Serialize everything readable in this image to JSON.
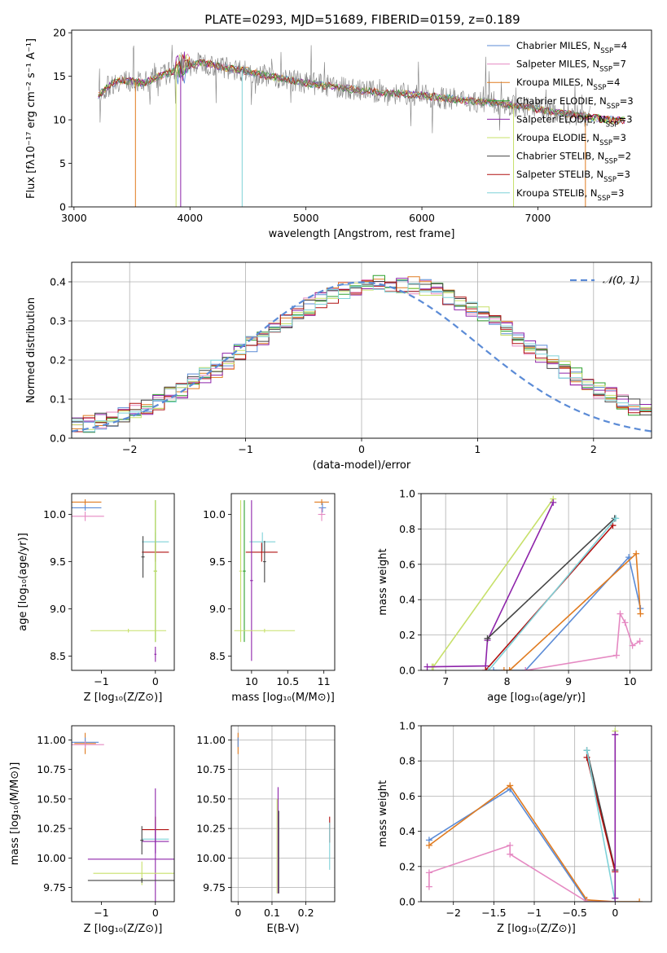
{
  "figure": {
    "title": "PLATE=0293, MJD=51689, FIBERID=0159, z=0.189"
  },
  "chart_data": [
    {
      "id": "spectrum",
      "type": "line",
      "title": "PLATE=0293, MJD=51689, FIBERID=0159, z=0.189",
      "xlabel": "wavelength [Angstrom, rest frame]",
      "ylabel": "Flux [fλ10⁻¹⁷ erg cm⁻² s⁻¹ A⁻¹]",
      "xlim": [
        2980,
        7980
      ],
      "ylim": [
        0,
        20.3
      ],
      "xticks": [
        3000,
        4000,
        5000,
        6000,
        7000
      ],
      "yticks": [
        0,
        5,
        10,
        15,
        20
      ],
      "legend_position": "right",
      "grid": false,
      "series": [
        {
          "name": "Chabrier MILES, N_SSP=4",
          "color": "#5b8bd6"
        },
        {
          "name": "Salpeter MILES, N_SSP=7",
          "color": "#e589c2"
        },
        {
          "name": "Kroupa MILES, N_SSP=4",
          "color": "#e07b20"
        },
        {
          "name": "Chabrier ELODIE, N_SSP=3",
          "color": "#2ca02c"
        },
        {
          "name": "Salpeter ELODIE, N_SSP=3",
          "color": "#8e24aa"
        },
        {
          "name": "Kroupa ELODIE, N_SSP=3",
          "color": "#c7e06a"
        },
        {
          "name": "Chabrier STELIB, N_SSP=2",
          "color": "#444444"
        },
        {
          "name": "Salpeter STELIB, N_SSP=3",
          "color": "#b01010"
        },
        {
          "name": "Kroupa STELIB, N_SSP=3",
          "color": "#7fd2d8"
        }
      ],
      "model_continuum": [
        [
          3210,
          12.8
        ],
        [
          3300,
          13.9
        ],
        [
          3400,
          14.6
        ],
        [
          3500,
          14.4
        ],
        [
          3600,
          14.2
        ],
        [
          3700,
          14.8
        ],
        [
          3800,
          15.3
        ],
        [
          3900,
          15.8
        ],
        [
          4000,
          16.1
        ],
        [
          4100,
          16.6
        ],
        [
          4200,
          16.3
        ],
        [
          4300,
          16.0
        ],
        [
          4400,
          15.8
        ],
        [
          4500,
          15.6
        ],
        [
          4600,
          15.2
        ],
        [
          4700,
          15.0
        ],
        [
          4800,
          14.7
        ],
        [
          4900,
          14.5
        ],
        [
          5000,
          14.2
        ],
        [
          5200,
          13.9
        ],
        [
          5400,
          13.5
        ],
        [
          5600,
          13.2
        ],
        [
          5800,
          13.0
        ],
        [
          6000,
          12.8
        ],
        [
          6200,
          12.5
        ],
        [
          6400,
          12.2
        ],
        [
          6600,
          12.0
        ],
        [
          6800,
          11.6
        ],
        [
          7000,
          11.2
        ],
        [
          7200,
          10.8
        ],
        [
          7400,
          10.4
        ],
        [
          7600,
          10.0
        ],
        [
          7750,
          9.9
        ]
      ],
      "observed_range": [
        3215,
        7450
      ]
    },
    {
      "id": "residuals",
      "type": "histogram",
      "xlabel": "(data-model)/error",
      "ylabel": "Normed distribution",
      "xlim": [
        -2.5,
        2.5
      ],
      "ylim": [
        0,
        0.45
      ],
      "xticks": [
        -2,
        -1,
        0,
        1,
        2
      ],
      "yticks": [
        0.0,
        0.1,
        0.2,
        0.3,
        0.4
      ],
      "grid": true,
      "legend": "N(0, 1)",
      "reference_curve": {
        "name": "N(0, 1)",
        "mean": 0,
        "sigma": 1,
        "color": "#5b8bd6",
        "style": "dashed"
      },
      "bin_width": 0.1,
      "bins_from": -2.5,
      "envelope": [
        0.03,
        0.036,
        0.043,
        0.051,
        0.06,
        0.07,
        0.082,
        0.095,
        0.11,
        0.125,
        0.142,
        0.16,
        0.178,
        0.198,
        0.218,
        0.238,
        0.258,
        0.28,
        0.3,
        0.318,
        0.336,
        0.352,
        0.365,
        0.377,
        0.386,
        0.392,
        0.396,
        0.396,
        0.394,
        0.391,
        0.384,
        0.375,
        0.364,
        0.35,
        0.334,
        0.317,
        0.298,
        0.278,
        0.257,
        0.236,
        0.216,
        0.196,
        0.176,
        0.158,
        0.14,
        0.124,
        0.108,
        0.094,
        0.081,
        0.07
      ]
    },
    {
      "id": "age-vs-Z",
      "type": "errorbar",
      "xlabel": "Z [log₁₀(Z/Z⊙)]",
      "ylabel": "age  [log₁₀(age/yr)]",
      "xlim": [
        -1.55,
        0.35
      ],
      "ylim": [
        8.35,
        10.22
      ],
      "xticks": [
        -1,
        0
      ],
      "yticks": [
        8.5,
        9.0,
        9.5,
        10.0
      ],
      "grid": false,
      "points": [
        {
          "x": -1.3,
          "y": 10.13,
          "xerr": 0.3,
          "yerr": 0.03,
          "series": "Kroupa MILES"
        },
        {
          "x": -1.3,
          "y": 10.07,
          "xerr": 0.3,
          "yerr": 0.03,
          "series": "Chabrier MILES"
        },
        {
          "x": -1.3,
          "y": 9.98,
          "xerr": 0.35,
          "yerr": 0.05,
          "series": "Salpeter MILES"
        },
        {
          "x": 0.0,
          "y": 9.71,
          "xerr": 0.25,
          "yerr": 0.1,
          "series": "Kroupa STELIB"
        },
        {
          "x": 0.0,
          "y": 9.6,
          "xerr": 0.25,
          "yerr": 0.1,
          "series": "Salpeter STELIB"
        },
        {
          "x": -0.23,
          "y": 9.55,
          "xerr": 0.03,
          "yerr": 0.22,
          "series": "Chabrier STELIB"
        },
        {
          "x": 0.0,
          "y": 9.4,
          "xerr": 0.03,
          "yerr": 0.75,
          "series": "Chabrier ELODIE"
        },
        {
          "x": 0.0,
          "y": 9.4,
          "xerr": 0.03,
          "yerr": 0.75,
          "series": "Kroupa ELODIE"
        },
        {
          "x": -0.5,
          "y": 8.77,
          "xerr": 0.7,
          "yerr": 0.02,
          "series": "Kroupa ELODIE"
        },
        {
          "x": 0.0,
          "y": 8.52,
          "xerr": 0.02,
          "yerr": 0.08,
          "series": "Salpeter ELODIE"
        }
      ]
    },
    {
      "id": "age-vs-mass",
      "type": "errorbar",
      "xlabel": "mass [log₁₀(M/M⊙)]",
      "xlim": [
        9.72,
        11.15
      ],
      "ylim": [
        8.35,
        10.22
      ],
      "xticks": [
        10.0,
        10.5,
        11.0
      ],
      "yticks": [
        8.5,
        9.0,
        9.5,
        10.0
      ],
      "grid": false,
      "points": [
        {
          "x": 10.97,
          "y": 10.13,
          "xerr": 0.1,
          "yerr": 0.03,
          "series": "Kroupa MILES"
        },
        {
          "x": 10.98,
          "y": 10.07,
          "xerr": 0.05,
          "yerr": 0.05,
          "series": "Chabrier MILES"
        },
        {
          "x": 10.97,
          "y": 10.0,
          "xerr": 0.05,
          "yerr": 0.07,
          "series": "Salpeter MILES"
        },
        {
          "x": 10.15,
          "y": 9.71,
          "xerr": 0.18,
          "yerr": 0.1,
          "series": "Kroupa STELIB"
        },
        {
          "x": 10.14,
          "y": 9.6,
          "xerr": 0.22,
          "yerr": 0.1,
          "series": "Salpeter STELIB"
        },
        {
          "x": 10.18,
          "y": 9.5,
          "xerr": 0.02,
          "yerr": 0.22,
          "series": "Chabrier STELIB"
        },
        {
          "x": 9.85,
          "y": 9.4,
          "xerr": 0.02,
          "yerr": 0.75,
          "series": "Kroupa ELODIE"
        },
        {
          "x": 9.9,
          "y": 9.4,
          "xerr": 0.02,
          "yerr": 0.75,
          "series": "Chabrier ELODIE"
        },
        {
          "x": 10.0,
          "y": 9.3,
          "xerr": 0.02,
          "yerr": 0.85,
          "series": "Salpeter ELODIE"
        },
        {
          "x": 10.18,
          "y": 8.77,
          "xerr": 0.42,
          "yerr": 0.02,
          "series": "Kroupa ELODIE"
        }
      ]
    },
    {
      "id": "weight-vs-age",
      "type": "line",
      "xlabel": "age  [log₁₀(age/yr)]",
      "ylabel": "mass weight",
      "xlim": [
        6.6,
        10.35
      ],
      "ylim": [
        0,
        1.0
      ],
      "xticks": [
        7,
        8,
        9,
        10
      ],
      "yticks": [
        0.0,
        0.2,
        0.4,
        0.6,
        0.8,
        1.0
      ],
      "grid": true,
      "series": [
        {
          "name": "Kroupa ELODIE",
          "color": "#c7e06a",
          "x": [
            6.78,
            6.8,
            8.75
          ],
          "y": [
            0.02,
            0.02,
            0.97
          ]
        },
        {
          "name": "Salpeter ELODIE",
          "color": "#8e24aa",
          "x": [
            6.7,
            7.65,
            7.68,
            8.75
          ],
          "y": [
            0.02,
            0.025,
            0.17,
            0.95
          ]
        },
        {
          "name": "Chabrier STELIB",
          "color": "#444444",
          "x": [
            7.68,
            9.75
          ],
          "y": [
            0.18,
            0.86
          ]
        },
        {
          "name": "Salpeter STELIB",
          "color": "#b01010",
          "x": [
            7.65,
            9.72
          ],
          "y": [
            0.0,
            0.82
          ]
        },
        {
          "name": "Kroupa STELIB",
          "color": "#7fd2d8",
          "x": [
            7.7,
            9.77
          ],
          "y": [
            0.0,
            0.86
          ]
        },
        {
          "name": "Chabrier MILES",
          "color": "#5b8bd6",
          "x": [
            7.78,
            8.3,
            9.98,
            10.17
          ],
          "y": [
            0.0,
            0.0,
            0.64,
            0.35
          ]
        },
        {
          "name": "Kroupa MILES",
          "color": "#e07b20",
          "x": [
            7.95,
            8.04,
            10.1,
            10.17
          ],
          "y": [
            0.0,
            0.0,
            0.66,
            0.32
          ]
        },
        {
          "name": "Salpeter MILES",
          "color": "#e589c2",
          "x": [
            8.3,
            9.78,
            9.84,
            9.92,
            10.04,
            10.16
          ],
          "y": [
            0.0,
            0.085,
            0.32,
            0.27,
            0.14,
            0.165
          ]
        }
      ]
    },
    {
      "id": "mass-vs-Z",
      "type": "errorbar",
      "xlabel": "Z [log₁₀(Z/Z⊙)]",
      "ylabel": "mass [log₁₀(M/M⊙)]",
      "xlim": [
        -1.55,
        0.35
      ],
      "ylim": [
        9.63,
        11.12
      ],
      "xticks": [
        -1,
        0
      ],
      "yticks": [
        9.75,
        10.0,
        10.25,
        10.5,
        10.75,
        11.0
      ],
      "grid": false,
      "points": [
        {
          "x": -1.3,
          "y": 10.97,
          "xerr": 0.2,
          "yerr": 0.09,
          "series": "Kroupa MILES"
        },
        {
          "x": -1.3,
          "y": 10.98,
          "xerr": 0.25,
          "yerr": 0.04,
          "series": "Chabrier MILES"
        },
        {
          "x": -1.3,
          "y": 10.96,
          "xerr": 0.35,
          "yerr": 0.03,
          "series": "Salpeter MILES"
        },
        {
          "x": 0.0,
          "y": 10.24,
          "xerr": 0.25,
          "yerr": 0.11,
          "series": "Salpeter STELIB"
        },
        {
          "x": 0.0,
          "y": 10.16,
          "xerr": 0.25,
          "yerr": 0.03,
          "series": "Kroupa STELIB"
        },
        {
          "x": 0.0,
          "y": 10.14,
          "xerr": 0.25,
          "yerr": 0.1,
          "series": "Salpeter ELODIE"
        },
        {
          "x": 0.0,
          "y": 9.99,
          "xerr": 1.25,
          "yerr": 0.6,
          "series": "Salpeter ELODIE"
        },
        {
          "x": -0.25,
          "y": 10.15,
          "xerr": 0.03,
          "yerr": 0.12,
          "series": "Chabrier STELIB"
        },
        {
          "x": -0.25,
          "y": 9.87,
          "xerr": 0.9,
          "yerr": 0.1,
          "series": "Kroupa ELODIE"
        },
        {
          "x": -0.25,
          "y": 9.81,
          "xerr": 1.0,
          "yerr": 0.02,
          "series": "Chabrier STELIB"
        }
      ]
    },
    {
      "id": "mass-vs-EBV",
      "type": "errorbar",
      "xlabel": "E(B-V)",
      "xlim": [
        -0.02,
        0.285
      ],
      "ylim": [
        9.63,
        11.12
      ],
      "xticks": [
        0.0,
        0.1,
        0.2
      ],
      "yticks": [
        9.75,
        10.0,
        10.25,
        10.5,
        10.75,
        11.0
      ],
      "grid": true,
      "points": [
        {
          "x": 0.0,
          "y": 10.97,
          "xerr": 0.0,
          "yerr": 0.09,
          "series": "Kroupa MILES"
        },
        {
          "x": 0.0,
          "y": 10.98,
          "xerr": 0.0,
          "yerr": 0.04,
          "series": "Chabrier MILES"
        },
        {
          "x": 0.118,
          "y": 10.15,
          "xerr": 0.0,
          "yerr": 0.45,
          "series": "Salpeter ELODIE"
        },
        {
          "x": 0.115,
          "y": 10.1,
          "xerr": 0.0,
          "yerr": 0.4,
          "series": "Kroupa ELODIE"
        },
        {
          "x": 0.12,
          "y": 10.05,
          "xerr": 0.0,
          "yerr": 0.35,
          "series": "Chabrier STELIB"
        },
        {
          "x": 0.27,
          "y": 10.24,
          "xerr": 0.0,
          "yerr": 0.11,
          "series": "Salpeter STELIB"
        },
        {
          "x": 0.27,
          "y": 10.1,
          "xerr": 0.0,
          "yerr": 0.2,
          "series": "Kroupa STELIB"
        }
      ]
    },
    {
      "id": "weight-vs-Z",
      "type": "line",
      "xlabel": "Z [log₁₀(Z/Z⊙)]",
      "ylabel": "mass weight",
      "xlim": [
        -2.4,
        0.45
      ],
      "ylim": [
        0,
        1.0
      ],
      "xticks": [
        -2.0,
        -1.5,
        -1.0,
        -0.5,
        0.0
      ],
      "yticks": [
        0.0,
        0.2,
        0.4,
        0.6,
        0.8,
        1.0
      ],
      "grid": true,
      "series": [
        {
          "name": "Chabrier MILES",
          "color": "#5b8bd6",
          "x": [
            -2.3,
            -1.3,
            -0.35,
            0.0
          ],
          "y": [
            0.35,
            0.64,
            0.0,
            0.0
          ]
        },
        {
          "name": "Kroupa MILES",
          "color": "#e07b20",
          "x": [
            -2.3,
            -1.3,
            -0.35,
            0.0,
            0.3
          ],
          "y": [
            0.32,
            0.66,
            0.01,
            0.0,
            0.0
          ]
        },
        {
          "name": "Salpeter MILES",
          "color": "#e589c2",
          "x": [
            -2.3,
            -2.3,
            -1.3,
            -1.3,
            -0.35,
            0.0
          ],
          "y": [
            0.085,
            0.165,
            0.32,
            0.27,
            0.0,
            0.0
          ]
        },
        {
          "name": "Chabrier STELIB",
          "color": "#444444",
          "x": [
            -0.35,
            0.0
          ],
          "y": [
            0.86,
            0.18
          ]
        },
        {
          "name": "Salpeter STELIB",
          "color": "#b01010",
          "x": [
            -0.35,
            0.0
          ],
          "y": [
            0.82,
            0.17
          ]
        },
        {
          "name": "Kroupa STELIB",
          "color": "#7fd2d8",
          "x": [
            -0.35,
            0.0
          ],
          "y": [
            0.86,
            0.0
          ]
        },
        {
          "name": "Kroupa ELODIE",
          "color": "#c7e06a",
          "x": [
            0.0,
            0.0
          ],
          "y": [
            0.02,
            0.97
          ]
        },
        {
          "name": "Salpeter ELODIE",
          "color": "#8e24aa",
          "x": [
            0.0,
            0.0
          ],
          "y": [
            0.02,
            0.95
          ]
        }
      ]
    }
  ]
}
